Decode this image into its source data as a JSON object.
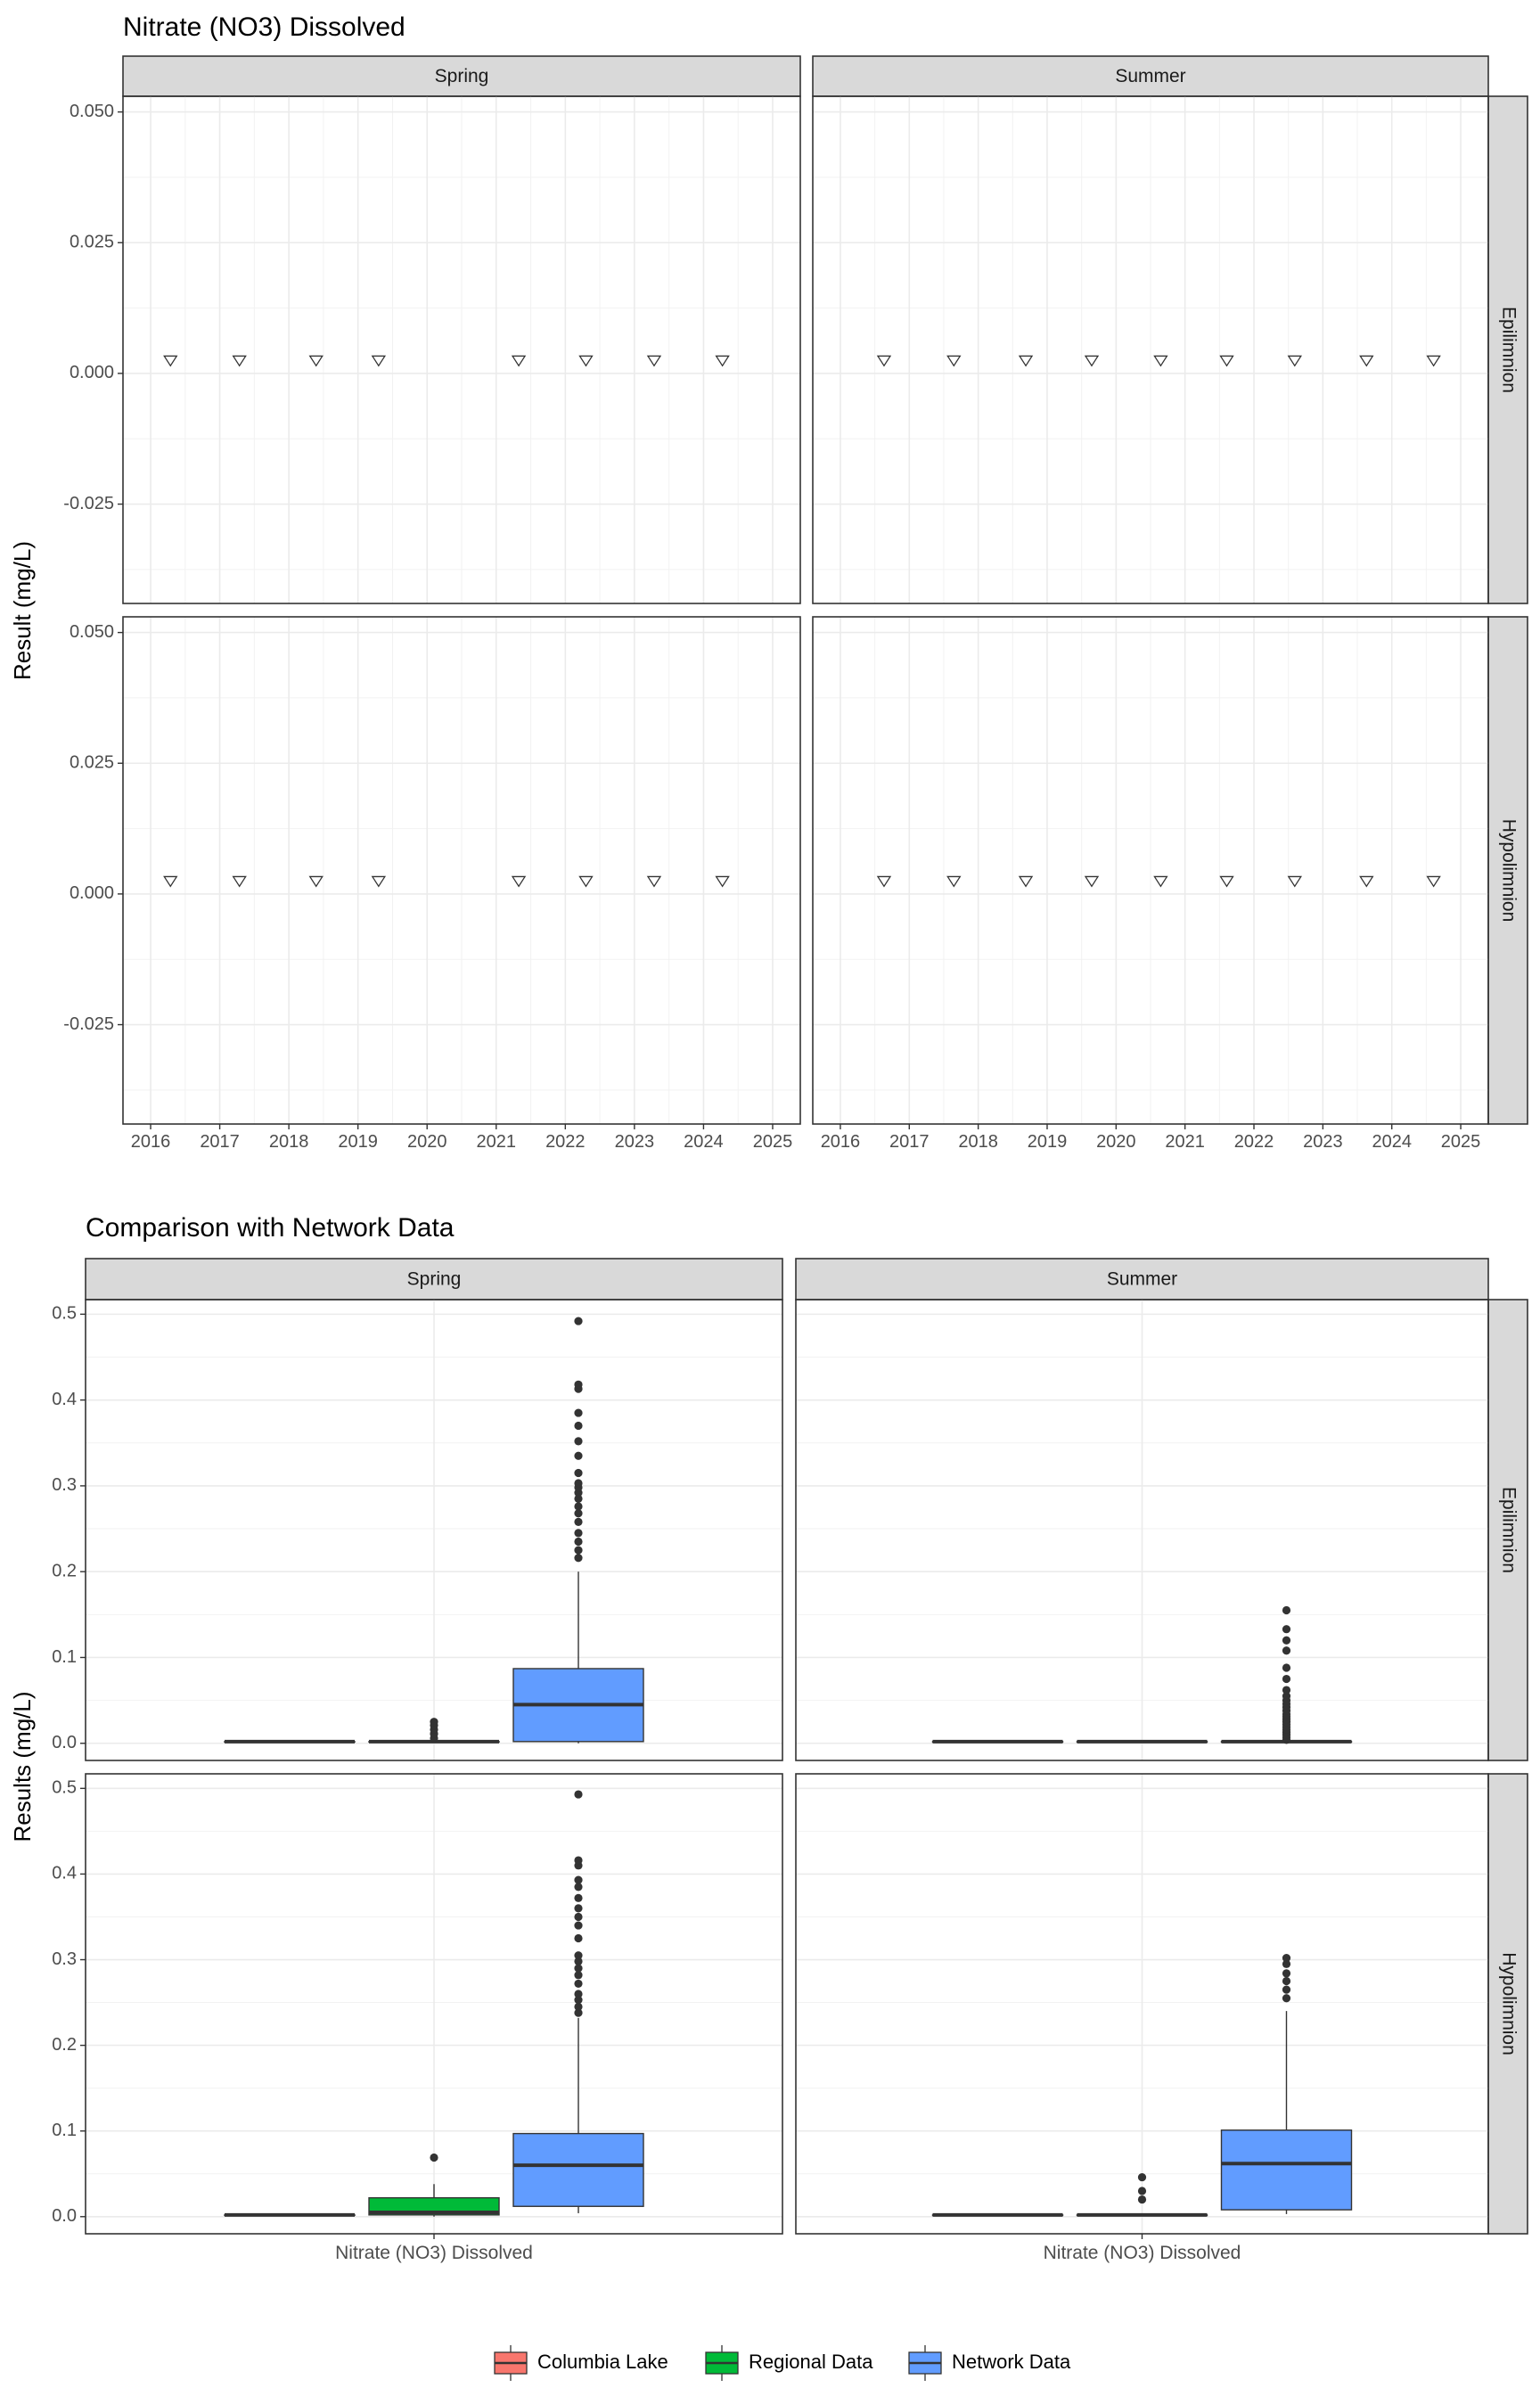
{
  "chart_data": [
    {
      "type": "scatter",
      "title": "Nitrate (NO3) Dissolved",
      "ylabel": "Result (mg/L)",
      "xlabel": "",
      "ylim": [
        -0.044,
        0.053
      ],
      "xlim": [
        2015.6,
        2025.4
      ],
      "grid": true,
      "y_ticks": [
        "-0.025",
        "0.000",
        "0.025",
        "0.050"
      ],
      "x_ticks": [
        "2016",
        "2017",
        "2018",
        "2019",
        "2020",
        "2021",
        "2022",
        "2023",
        "2024",
        "2025"
      ],
      "marker": "open-triangle-down",
      "columns": [
        "Spring",
        "Summer"
      ],
      "rows": [
        "Epilimnion",
        "Hypolimnion"
      ],
      "panels": [
        {
          "season": "Spring",
          "layer": "Epilimnion",
          "x": [
            "2016-04-15",
            "2017-04-15",
            "2018-05-25",
            "2019-04-20",
            "2021-04-30",
            "2022-04-20",
            "2023-04-15",
            "2024-04-10"
          ],
          "y": [
            0.0026,
            0.0026,
            0.0026,
            0.0026,
            0.0026,
            0.0026,
            0.0026,
            0.0026
          ]
        },
        {
          "season": "Summer",
          "layer": "Epilimnion",
          "x": [
            "2016-08-20",
            "2017-08-25",
            "2018-09-10",
            "2019-08-25",
            "2020-08-25",
            "2021-08-10",
            "2022-08-05",
            "2023-08-20",
            "2024-08-10"
          ],
          "y": [
            0.0026,
            0.0026,
            0.0026,
            0.0026,
            0.0026,
            0.0026,
            0.0026,
            0.0026,
            0.0026
          ]
        },
        {
          "season": "Spring",
          "layer": "Hypolimnion",
          "x": [
            "2016-04-15",
            "2017-04-15",
            "2018-05-25",
            "2019-04-20",
            "2021-04-30",
            "2022-04-20",
            "2023-04-15",
            "2024-04-10"
          ],
          "y": [
            0.0026,
            0.0026,
            0.0026,
            0.0026,
            0.0026,
            0.0026,
            0.0026,
            0.0026
          ]
        },
        {
          "season": "Summer",
          "layer": "Hypolimnion",
          "x": [
            "2016-08-20",
            "2017-08-25",
            "2018-09-10",
            "2019-08-25",
            "2020-08-25",
            "2021-08-10",
            "2022-08-05",
            "2023-08-20",
            "2024-08-10"
          ],
          "y": [
            0.0026,
            0.0026,
            0.0026,
            0.0026,
            0.0026,
            0.0026,
            0.0026,
            0.0026,
            0.0026
          ]
        }
      ]
    },
    {
      "type": "box",
      "title": "Comparison with Network Data",
      "ylabel": "Results (mg/L)",
      "xlabel": "",
      "ylim": [
        -0.02,
        0.517
      ],
      "grid": true,
      "y_ticks": [
        "0.0",
        "0.1",
        "0.2",
        "0.3",
        "0.4",
        "0.5"
      ],
      "categories": [
        "Nitrate (NO3) Dissolved"
      ],
      "columns": [
        "Spring",
        "Summer"
      ],
      "rows": [
        "Epilimnion",
        "Hypolimnion"
      ],
      "series": [
        {
          "name": "Columbia Lake",
          "color": "#F8766D"
        },
        {
          "name": "Regional Data",
          "color": "#00BA38"
        },
        {
          "name": "Network Data",
          "color": "#619CFF"
        }
      ],
      "legend_position": "bottom",
      "panels": [
        {
          "season": "Spring",
          "layer": "Epilimnion",
          "boxes": [
            {
              "series": "Columbia Lake",
              "q1": 0.002,
              "median": 0.002,
              "q3": 0.002,
              "whisker_low": 0.002,
              "whisker_high": 0.002,
              "outliers": []
            },
            {
              "series": "Regional Data",
              "q1": 0.002,
              "median": 0.002,
              "q3": 0.002,
              "whisker_low": 0.002,
              "whisker_high": 0.002,
              "outliers": [
                0.006,
                0.011,
                0.016,
                0.021,
                0.025
              ]
            },
            {
              "series": "Network Data",
              "q1": 0.002,
              "median": 0.045,
              "q3": 0.087,
              "whisker_low": 0.0,
              "whisker_high": 0.2,
              "outliers": [
                0.216,
                0.225,
                0.235,
                0.245,
                0.258,
                0.268,
                0.276,
                0.285,
                0.292,
                0.298,
                0.303,
                0.315,
                0.335,
                0.352,
                0.37,
                0.385,
                0.413,
                0.418,
                0.492
              ]
            }
          ]
        },
        {
          "season": "Summer",
          "layer": "Epilimnion",
          "boxes": [
            {
              "series": "Columbia Lake",
              "q1": 0.002,
              "median": 0.002,
              "q3": 0.002,
              "whisker_low": 0.002,
              "whisker_high": 0.002,
              "outliers": []
            },
            {
              "series": "Regional Data",
              "q1": 0.002,
              "median": 0.002,
              "q3": 0.002,
              "whisker_low": 0.002,
              "whisker_high": 0.002,
              "outliers": []
            },
            {
              "series": "Network Data",
              "q1": 0.002,
              "median": 0.002,
              "q3": 0.002,
              "whisker_low": 0.002,
              "whisker_high": 0.002,
              "outliers": [
                0.004,
                0.007,
                0.01,
                0.013,
                0.016,
                0.019,
                0.022,
                0.025,
                0.028,
                0.031,
                0.034,
                0.038,
                0.042,
                0.046,
                0.05,
                0.055,
                0.062,
                0.075,
                0.088,
                0.108,
                0.12,
                0.133,
                0.155
              ]
            }
          ]
        },
        {
          "season": "Spring",
          "layer": "Hypolimnion",
          "boxes": [
            {
              "series": "Columbia Lake",
              "q1": 0.002,
              "median": 0.002,
              "q3": 0.002,
              "whisker_low": 0.002,
              "whisker_high": 0.002,
              "outliers": []
            },
            {
              "series": "Regional Data",
              "q1": 0.002,
              "median": 0.005,
              "q3": 0.022,
              "whisker_low": 0.0,
              "whisker_high": 0.038,
              "outliers": [
                0.069
              ]
            },
            {
              "series": "Network Data",
              "q1": 0.012,
              "median": 0.06,
              "q3": 0.097,
              "whisker_low": 0.004,
              "whisker_high": 0.232,
              "outliers": [
                0.238,
                0.245,
                0.253,
                0.26,
                0.272,
                0.282,
                0.29,
                0.298,
                0.305,
                0.325,
                0.34,
                0.35,
                0.36,
                0.372,
                0.385,
                0.393,
                0.41,
                0.416,
                0.493
              ]
            }
          ]
        },
        {
          "season": "Summer",
          "layer": "Hypolimnion",
          "boxes": [
            {
              "series": "Columbia Lake",
              "q1": 0.002,
              "median": 0.002,
              "q3": 0.002,
              "whisker_low": 0.002,
              "whisker_high": 0.002,
              "outliers": []
            },
            {
              "series": "Regional Data",
              "q1": 0.002,
              "median": 0.002,
              "q3": 0.002,
              "whisker_low": 0.002,
              "whisker_high": 0.002,
              "outliers": [
                0.02,
                0.03,
                0.046
              ]
            },
            {
              "series": "Network Data",
              "q1": 0.008,
              "median": 0.062,
              "q3": 0.101,
              "whisker_low": 0.003,
              "whisker_high": 0.24,
              "outliers": [
                0.255,
                0.265,
                0.275,
                0.284,
                0.295,
                0.302
              ]
            }
          ]
        }
      ]
    }
  ]
}
